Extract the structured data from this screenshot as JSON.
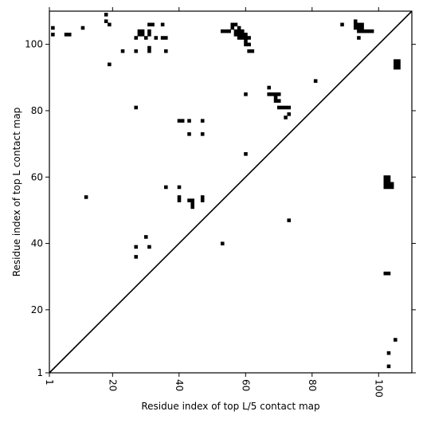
{
  "chart_data": {
    "type": "heatmap",
    "title": "",
    "xlabel": "Residue index of top L/5 contact map",
    "ylabel": "Residue index of top L contact map",
    "xlim": [
      1,
      110
    ],
    "ylim": [
      1,
      110
    ],
    "x_ticks": [
      "1",
      "20",
      "40",
      "60",
      "80",
      "100"
    ],
    "y_ticks": [
      "1",
      "20",
      "40",
      "60",
      "80",
      "100"
    ],
    "x_tick_rotation": 90,
    "grid": false,
    "diagonal": true,
    "cell_color": "#000000",
    "upper_triangle_contacts": [
      [
        2,
        105
      ],
      [
        2,
        103
      ],
      [
        6,
        103
      ],
      [
        7,
        103
      ],
      [
        11,
        105
      ],
      [
        18,
        109
      ],
      [
        18,
        107
      ],
      [
        19,
        106
      ],
      [
        19,
        94
      ],
      [
        23,
        98
      ],
      [
        27,
        98
      ],
      [
        27,
        102
      ],
      [
        28,
        103
      ],
      [
        28,
        104
      ],
      [
        29,
        104
      ],
      [
        29,
        103
      ],
      [
        30,
        102
      ],
      [
        31,
        104
      ],
      [
        31,
        103
      ],
      [
        31,
        106
      ],
      [
        31,
        99
      ],
      [
        31,
        98
      ],
      [
        32,
        106
      ],
      [
        33,
        102
      ],
      [
        35,
        106
      ],
      [
        35,
        102
      ],
      [
        36,
        102
      ],
      [
        36,
        98
      ],
      [
        27,
        81
      ],
      [
        40,
        77
      ],
      [
        41,
        77
      ],
      [
        43,
        77
      ],
      [
        47,
        77
      ],
      [
        43,
        73
      ],
      [
        47,
        73
      ],
      [
        53,
        104
      ],
      [
        54,
        104
      ],
      [
        55,
        104
      ],
      [
        56,
        106
      ],
      [
        56,
        105
      ],
      [
        57,
        106
      ],
      [
        57,
        104
      ],
      [
        57,
        103
      ],
      [
        58,
        105
      ],
      [
        58,
        104
      ],
      [
        58,
        103
      ],
      [
        58,
        102
      ],
      [
        59,
        104
      ],
      [
        59,
        103
      ],
      [
        59,
        102
      ],
      [
        60,
        103
      ],
      [
        60,
        102
      ],
      [
        60,
        101
      ],
      [
        60,
        100
      ],
      [
        61,
        102
      ],
      [
        61,
        100
      ],
      [
        61,
        98
      ],
      [
        62,
        98
      ],
      [
        60,
        85
      ],
      [
        60,
        67
      ],
      [
        67,
        87
      ],
      [
        67,
        85
      ],
      [
        68,
        85
      ],
      [
        69,
        85
      ],
      [
        69,
        84
      ],
      [
        69,
        83
      ],
      [
        70,
        85
      ],
      [
        70,
        83
      ],
      [
        70,
        81
      ],
      [
        71,
        81
      ],
      [
        72,
        81
      ],
      [
        72,
        78
      ],
      [
        73,
        81
      ],
      [
        73,
        79
      ],
      [
        81,
        89
      ],
      [
        89,
        106
      ],
      [
        93,
        107
      ],
      [
        93,
        106
      ],
      [
        93,
        105
      ],
      [
        94,
        106
      ],
      [
        94,
        105
      ],
      [
        94,
        104
      ],
      [
        94,
        102
      ],
      [
        95,
        106
      ],
      [
        95,
        105
      ],
      [
        95,
        104
      ],
      [
        96,
        104
      ],
      [
        97,
        104
      ],
      [
        98,
        104
      ]
    ],
    "lower_triangle_contacts": [
      [
        12,
        54
      ],
      [
        36,
        57
      ],
      [
        40,
        57
      ],
      [
        40,
        54
      ],
      [
        40,
        53
      ],
      [
        43,
        53
      ],
      [
        44,
        53
      ],
      [
        44,
        52
      ],
      [
        44,
        51
      ],
      [
        47,
        54
      ],
      [
        47,
        53
      ],
      [
        30,
        42
      ],
      [
        27,
        39
      ],
      [
        31,
        39
      ],
      [
        27,
        36
      ],
      [
        53,
        40
      ],
      [
        73,
        47
      ],
      [
        102,
        60
      ],
      [
        103,
        60
      ],
      [
        102,
        59
      ],
      [
        103,
        59
      ],
      [
        102,
        58
      ],
      [
        103,
        58
      ],
      [
        104,
        58
      ],
      [
        102,
        57
      ],
      [
        103,
        57
      ],
      [
        104,
        57
      ],
      [
        102,
        31
      ],
      [
        103,
        31
      ],
      [
        105,
        95
      ],
      [
        106,
        95
      ],
      [
        105,
        94
      ],
      [
        106,
        94
      ],
      [
        105,
        93
      ],
      [
        106,
        93
      ],
      [
        105,
        11
      ],
      [
        103,
        7
      ],
      [
        103,
        3
      ]
    ]
  }
}
